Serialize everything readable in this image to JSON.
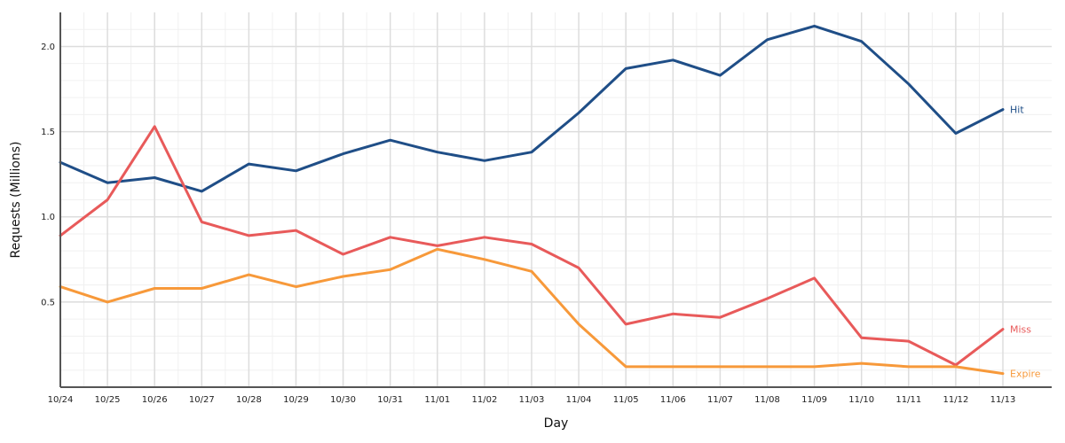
{
  "chart_data": {
    "type": "line",
    "xlabel": "Day",
    "ylabel": "Requests (Millions)",
    "ylim": [
      0,
      2.2
    ],
    "yticks": [
      "0.5",
      "1.0",
      "1.5",
      "2.0"
    ],
    "grid": true,
    "legend": "inline labels at line ends",
    "categories": [
      "10/24",
      "10/25",
      "10/26",
      "10/27",
      "10/28",
      "10/29",
      "10/30",
      "10/31",
      "11/01",
      "11/02",
      "11/03",
      "11/04",
      "11/05",
      "11/06",
      "11/07",
      "11/08",
      "11/09",
      "11/10",
      "11/11",
      "11/12",
      "11/13"
    ],
    "series": [
      {
        "name": "Hit",
        "color": "#1f4e87",
        "values": [
          1.32,
          1.2,
          1.23,
          1.15,
          1.31,
          1.27,
          1.37,
          1.45,
          1.38,
          1.33,
          1.38,
          1.61,
          1.87,
          1.92,
          1.83,
          2.04,
          2.12,
          2.03,
          1.78,
          1.49,
          1.63
        ]
      },
      {
        "name": "Miss",
        "color": "#e85a5a",
        "values": [
          0.89,
          1.1,
          1.53,
          0.97,
          0.89,
          0.92,
          0.78,
          0.88,
          0.83,
          0.88,
          0.84,
          0.7,
          0.37,
          0.43,
          0.41,
          0.52,
          0.64,
          0.29,
          0.27,
          0.13,
          0.34
        ]
      },
      {
        "name": "Expire",
        "color": "#f7993a",
        "values": [
          0.59,
          0.5,
          0.58,
          0.58,
          0.66,
          0.59,
          0.65,
          0.69,
          0.81,
          0.75,
          0.68,
          0.37,
          0.12,
          0.12,
          0.12,
          0.12,
          0.12,
          0.14,
          0.12,
          0.12,
          0.08
        ]
      }
    ]
  }
}
